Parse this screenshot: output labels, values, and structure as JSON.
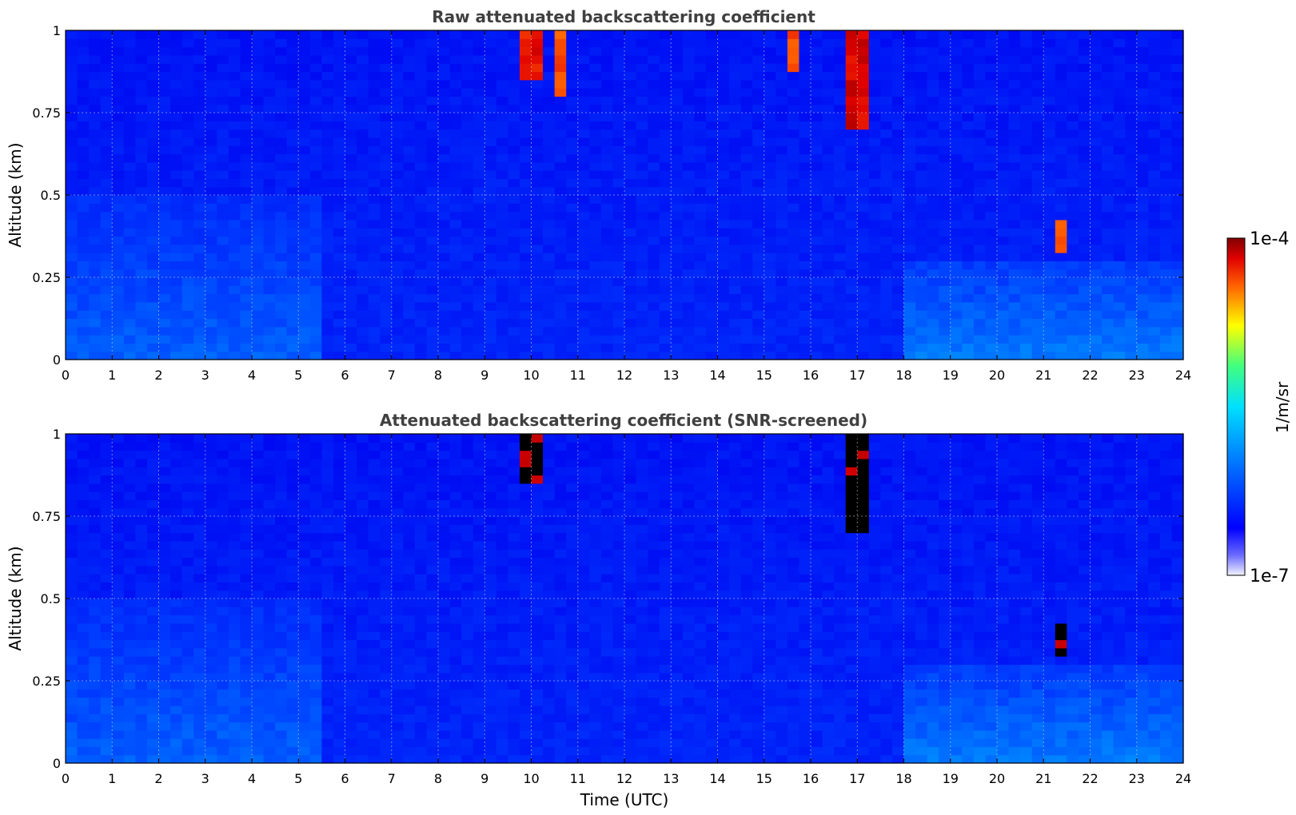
{
  "chart_data": [
    {
      "type": "heatmap",
      "title": "Raw attenuated backscattering coefficient",
      "xlabel": "",
      "ylabel": "Altitude (km)",
      "xlim": [
        0,
        24
      ],
      "ylim": [
        0,
        1
      ],
      "xticks": [
        "0",
        "1",
        "2",
        "3",
        "4",
        "5",
        "6",
        "7",
        "8",
        "9",
        "10",
        "11",
        "12",
        "13",
        "14",
        "15",
        "16",
        "17",
        "18",
        "19",
        "20",
        "21",
        "22",
        "23",
        "24"
      ],
      "yticks": [
        "0",
        "0.25",
        "0.5",
        "0.75",
        "1"
      ],
      "grid": true,
      "colorscale": "jet",
      "features": [
        {
          "label": "aerosol layer",
          "t_start": 0,
          "t_end": 5.5,
          "alt_top": 0.5,
          "level": 0.38
        },
        {
          "label": "cloud",
          "t_start": 9.8,
          "t_end": 10.2,
          "alt_bottom": 0.85,
          "alt_top": 1.0,
          "level": 0.95
        },
        {
          "label": "cloud",
          "t_start": 10.4,
          "t_end": 10.8,
          "alt_bottom": 0.8,
          "alt_top": 1.0,
          "level": 0.9
        },
        {
          "label": "cloud",
          "t_start": 15.4,
          "t_end": 15.8,
          "alt_bottom": 0.88,
          "alt_top": 1.0,
          "level": 0.9
        },
        {
          "label": "cloud",
          "t_start": 16.7,
          "t_end": 17.2,
          "alt_bottom": 0.7,
          "alt_top": 1.0,
          "level": 0.97
        },
        {
          "label": "plume",
          "t_start": 21.2,
          "t_end": 21.4,
          "alt_bottom": 0.33,
          "alt_top": 0.42,
          "level": 0.9
        },
        {
          "label": "boundary layer",
          "t_start": 18,
          "t_end": 24,
          "alt_top": 0.3,
          "level": 0.42
        }
      ]
    },
    {
      "type": "heatmap",
      "title": "Attenuated backscattering coefficient (SNR-screened)",
      "xlabel": "Time (UTC)",
      "ylabel": "Altitude (km)",
      "xlim": [
        0,
        24
      ],
      "ylim": [
        0,
        1
      ],
      "xticks": [
        "0",
        "1",
        "2",
        "3",
        "4",
        "5",
        "6",
        "7",
        "8",
        "9",
        "10",
        "11",
        "12",
        "13",
        "14",
        "15",
        "16",
        "17",
        "18",
        "19",
        "20",
        "21",
        "22",
        "23",
        "24"
      ],
      "yticks": [
        "0",
        "0.25",
        "0.5",
        "0.75",
        "1"
      ],
      "grid": true,
      "colorscale": "jet",
      "screened_color": "#000000",
      "features": [
        {
          "label": "aerosol layer",
          "t_start": 0,
          "t_end": 5.5,
          "alt_top": 0.5,
          "level": 0.38
        },
        {
          "label": "cloud (screened)",
          "t_start": 9.8,
          "t_end": 10.2,
          "alt_bottom": 0.85,
          "alt_top": 1.0,
          "level": 1.0
        },
        {
          "label": "cloud (screened)",
          "t_start": 16.7,
          "t_end": 17.2,
          "alt_bottom": 0.7,
          "alt_top": 1.0,
          "level": 1.0
        },
        {
          "label": "plume (screened)",
          "t_start": 21.2,
          "t_end": 21.4,
          "alt_bottom": 0.33,
          "alt_top": 0.42,
          "level": 1.0
        },
        {
          "label": "boundary layer",
          "t_start": 18,
          "t_end": 24,
          "alt_top": 0.3,
          "level": 0.42
        }
      ]
    }
  ],
  "colorbar": {
    "max_label": "1e-4",
    "min_label": "1e-7",
    "unit": "1/m/sr",
    "stops": [
      "#f2f2ff",
      "#0000ff",
      "#00ffff",
      "#ffff00",
      "#ff0000",
      "#800000"
    ]
  }
}
